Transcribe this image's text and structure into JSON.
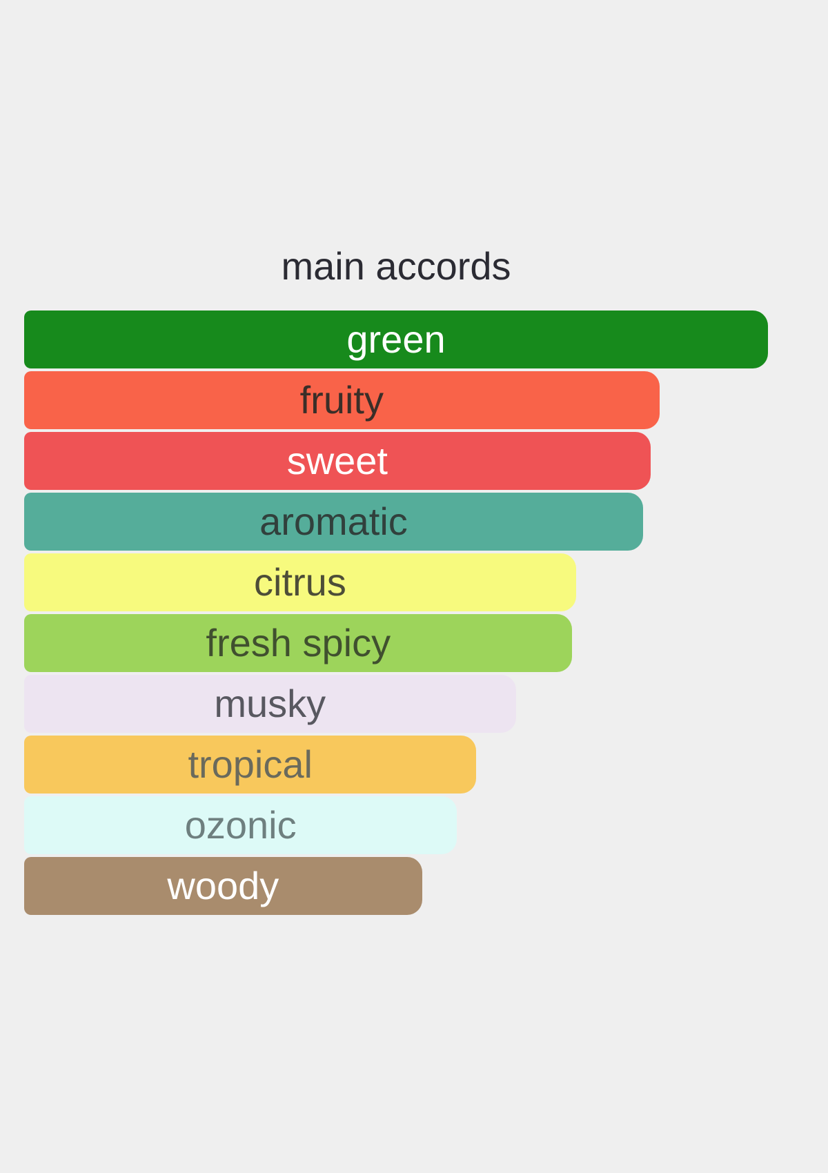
{
  "page": {
    "background_color": "#EFEFEF"
  },
  "chart_data": {
    "type": "bar",
    "orientation": "horizontal",
    "title": "main accords",
    "title_color": "#2B2B33",
    "categories": [
      "green",
      "fruity",
      "sweet",
      "aromatic",
      "citrus",
      "fresh spicy",
      "musky",
      "tropical",
      "ozonic",
      "woody"
    ],
    "values": [
      100,
      85.4,
      84.2,
      83.2,
      74.2,
      73.7,
      66.1,
      60.8,
      58.2,
      53.5
    ],
    "value_unit": "percent of widest bar",
    "bar_colors": [
      "#178A1C",
      "#F96349",
      "#EF5355",
      "#55AD9A",
      "#F7FA7E",
      "#9DD45B",
      "#EDE4F1",
      "#F8C85C",
      "#DDFAF7",
      "#A98C6D"
    ],
    "label_colors": [
      "#FFFFFF",
      "#3A2E28",
      "#FFFFFF",
      "#31403C",
      "#4D4D38",
      "#40502F",
      "#585860",
      "#6A6A5C",
      "#6E7F7F",
      "#FFFFFF"
    ],
    "xlabel": "",
    "ylabel": "",
    "axes": "none",
    "grid": false,
    "legend": false,
    "bar_style": "rounded"
  }
}
